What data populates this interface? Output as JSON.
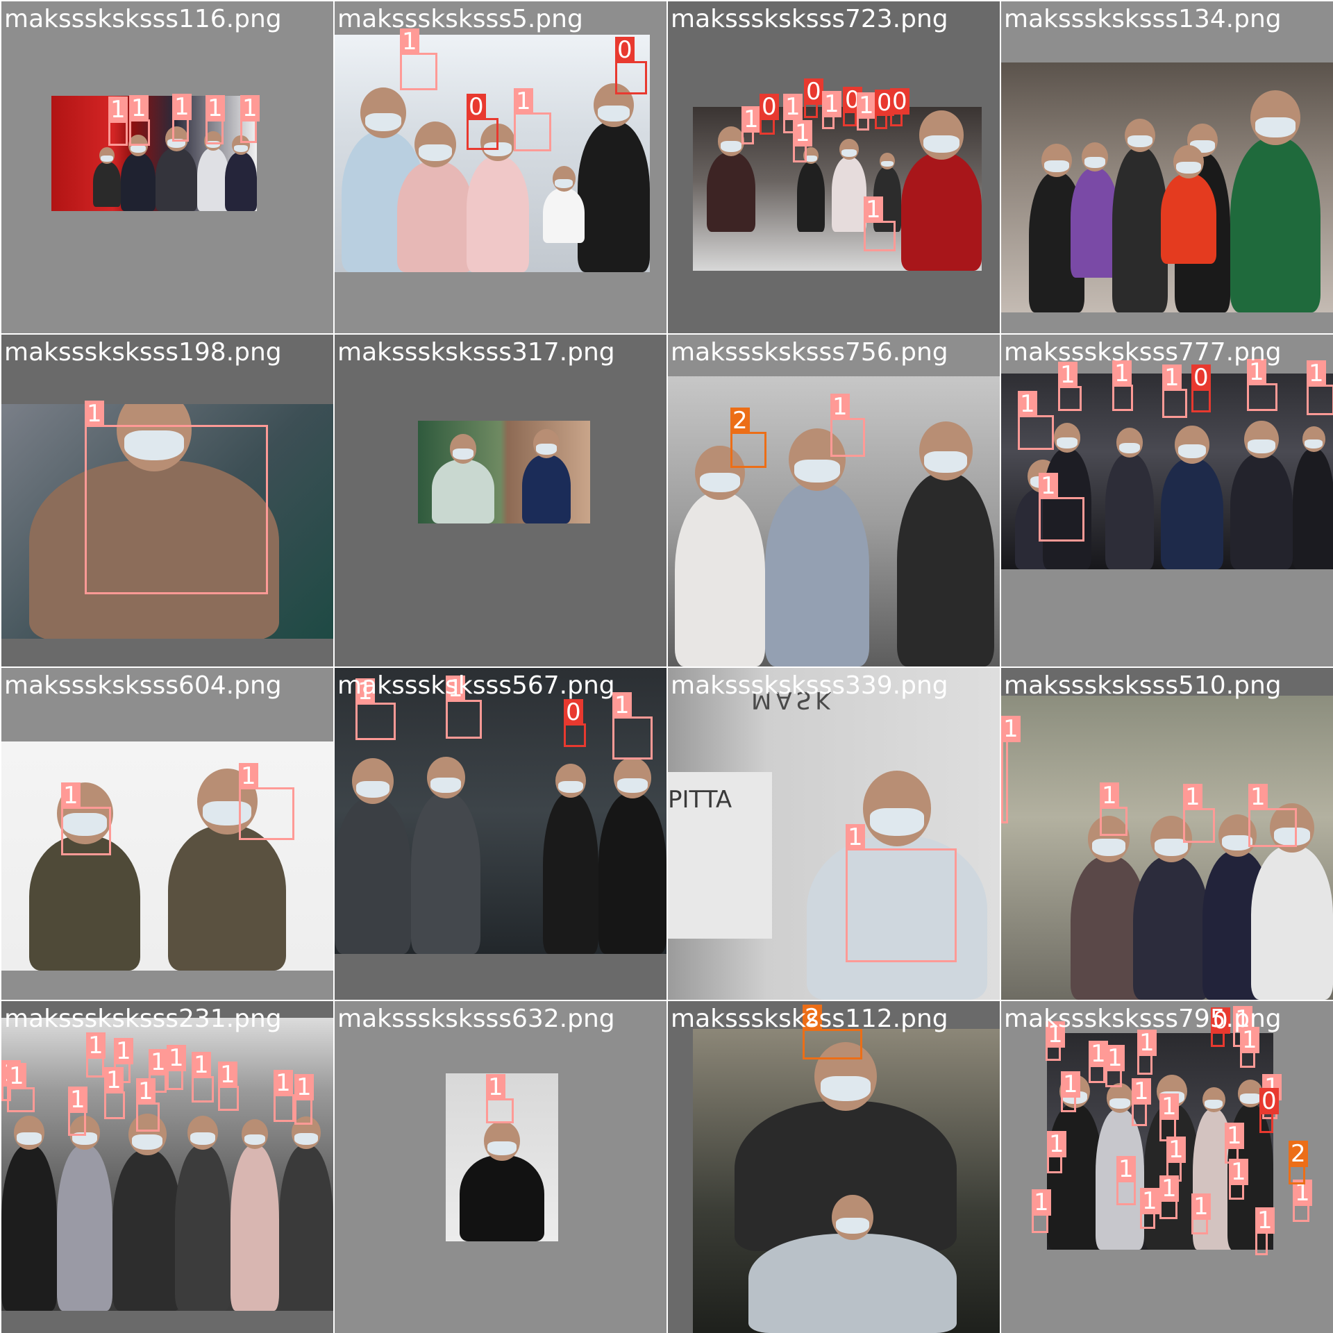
{
  "colors": {
    "class_0": "#e8392f",
    "class_1": "#ff9a96",
    "class_2": "#ec6e17",
    "label_text": "#ffffff",
    "tile_bg_light": "#8e8e8e",
    "tile_bg_dark": "#6a6a6a"
  },
  "tiles": [
    {
      "filename": "maksssksksss116.png",
      "bg": "#8e8e8e",
      "scene": "red-wall-group",
      "boxes": [
        {
          "label": "1"
        },
        {
          "label": "1"
        },
        {
          "label": "1"
        },
        {
          "label": "1"
        },
        {
          "label": "1"
        }
      ]
    },
    {
      "filename": "maksssksksss5.png",
      "bg": "#8e8e8e",
      "scene": "office-group",
      "boxes": [
        {
          "label": "1"
        },
        {
          "label": "0"
        },
        {
          "label": "1"
        },
        {
          "label": "0"
        }
      ]
    },
    {
      "filename": "maksssksksss723.png",
      "bg": "#6a6a6a",
      "scene": "lion-dance-crowd",
      "boxes": [
        {
          "label": "1"
        },
        {
          "label": "0"
        },
        {
          "label": "1"
        },
        {
          "label": "0"
        },
        {
          "label": "1"
        },
        {
          "label": "0"
        },
        {
          "label": "1"
        },
        {
          "label": "0"
        },
        {
          "label": "0"
        },
        {
          "label": "1"
        },
        {
          "label": "1"
        }
      ]
    },
    {
      "filename": "maksssksksss134.png",
      "bg": "#8e8e8e",
      "scene": "airport-families",
      "boxes": []
    },
    {
      "filename": "maksssksksss198.png",
      "bg": "#6a6a6a",
      "scene": "old-man-n95",
      "boxes": [
        {
          "label": "1"
        }
      ]
    },
    {
      "filename": "maksssksksss317.png",
      "bg": "#6a6a6a",
      "scene": "two-women",
      "boxes": []
    },
    {
      "filename": "maksssksksss756.png",
      "bg": "#8e8e8e",
      "scene": "street-women",
      "boxes": [
        {
          "label": "2"
        },
        {
          "label": "1"
        }
      ]
    },
    {
      "filename": "maksssksksss777.png",
      "bg": "#8e8e8e",
      "scene": "suits-crowd",
      "boxes": [
        {
          "label": "1"
        },
        {
          "label": "1"
        },
        {
          "label": "1"
        },
        {
          "label": "1"
        },
        {
          "label": "0"
        },
        {
          "label": "1"
        },
        {
          "label": "1"
        },
        {
          "label": "1"
        }
      ]
    },
    {
      "filename": "maksssksksss604.png",
      "bg": "#8e8e8e",
      "scene": "soldiers",
      "boxes": [
        {
          "label": "1"
        },
        {
          "label": "1"
        }
      ]
    },
    {
      "filename": "maksssksksss567.png",
      "bg": "#6a6a6a",
      "scene": "students",
      "boxes": [
        {
          "label": "1"
        },
        {
          "label": "1"
        },
        {
          "label": "0"
        },
        {
          "label": "1"
        }
      ]
    },
    {
      "filename": "maksssksksss339.png",
      "bg": "#6a6a6a",
      "scene": "pitta-ad",
      "sign_text": "MASK",
      "brand_text": "PITTA",
      "boxes": [
        {
          "label": "1"
        }
      ]
    },
    {
      "filename": "maksssksksss510.png",
      "bg": "#6a6a6a",
      "scene": "hospital",
      "boxes": [
        {
          "label": "1"
        },
        {
          "label": "1"
        },
        {
          "label": "1"
        },
        {
          "label": "1"
        }
      ]
    },
    {
      "filename": "maksssksksss231.png",
      "bg": "#6a6a6a",
      "scene": "queue-crowd",
      "boxes": [
        {
          "label": "1"
        },
        {
          "label": "1"
        },
        {
          "label": "1"
        },
        {
          "label": "1"
        },
        {
          "label": "1"
        },
        {
          "label": "1"
        },
        {
          "label": "1"
        },
        {
          "label": "1"
        },
        {
          "label": "1"
        },
        {
          "label": "1"
        },
        {
          "label": "1"
        },
        {
          "label": "1"
        },
        {
          "label": "1"
        }
      ]
    },
    {
      "filename": "maksssksksss632.png",
      "bg": "#8e8e8e",
      "scene": "black-tshirt",
      "boxes": [
        {
          "label": "1"
        }
      ]
    },
    {
      "filename": "maksssksksss112.png",
      "bg": "#6a6a6a",
      "scene": "striped-shirt",
      "boxes": [
        {
          "label": "2"
        }
      ]
    },
    {
      "filename": "maksssksksss795.png",
      "bg": "#8e8e8e",
      "scene": "dense-crowd",
      "boxes": [
        {
          "label": "1"
        },
        {
          "label": "1"
        },
        {
          "label": "1"
        },
        {
          "label": "0"
        },
        {
          "label": "1"
        },
        {
          "label": "1"
        },
        {
          "label": "1"
        },
        {
          "label": "1"
        },
        {
          "label": "1"
        },
        {
          "label": "1"
        },
        {
          "label": "1"
        },
        {
          "label": "0"
        },
        {
          "label": "1"
        },
        {
          "label": "1"
        },
        {
          "label": "1"
        },
        {
          "label": "1"
        },
        {
          "label": "1"
        },
        {
          "label": "1"
        },
        {
          "label": "1"
        },
        {
          "label": "1"
        },
        {
          "label": "2"
        },
        {
          "label": "1"
        },
        {
          "label": "1"
        },
        {
          "label": "1"
        }
      ]
    }
  ]
}
